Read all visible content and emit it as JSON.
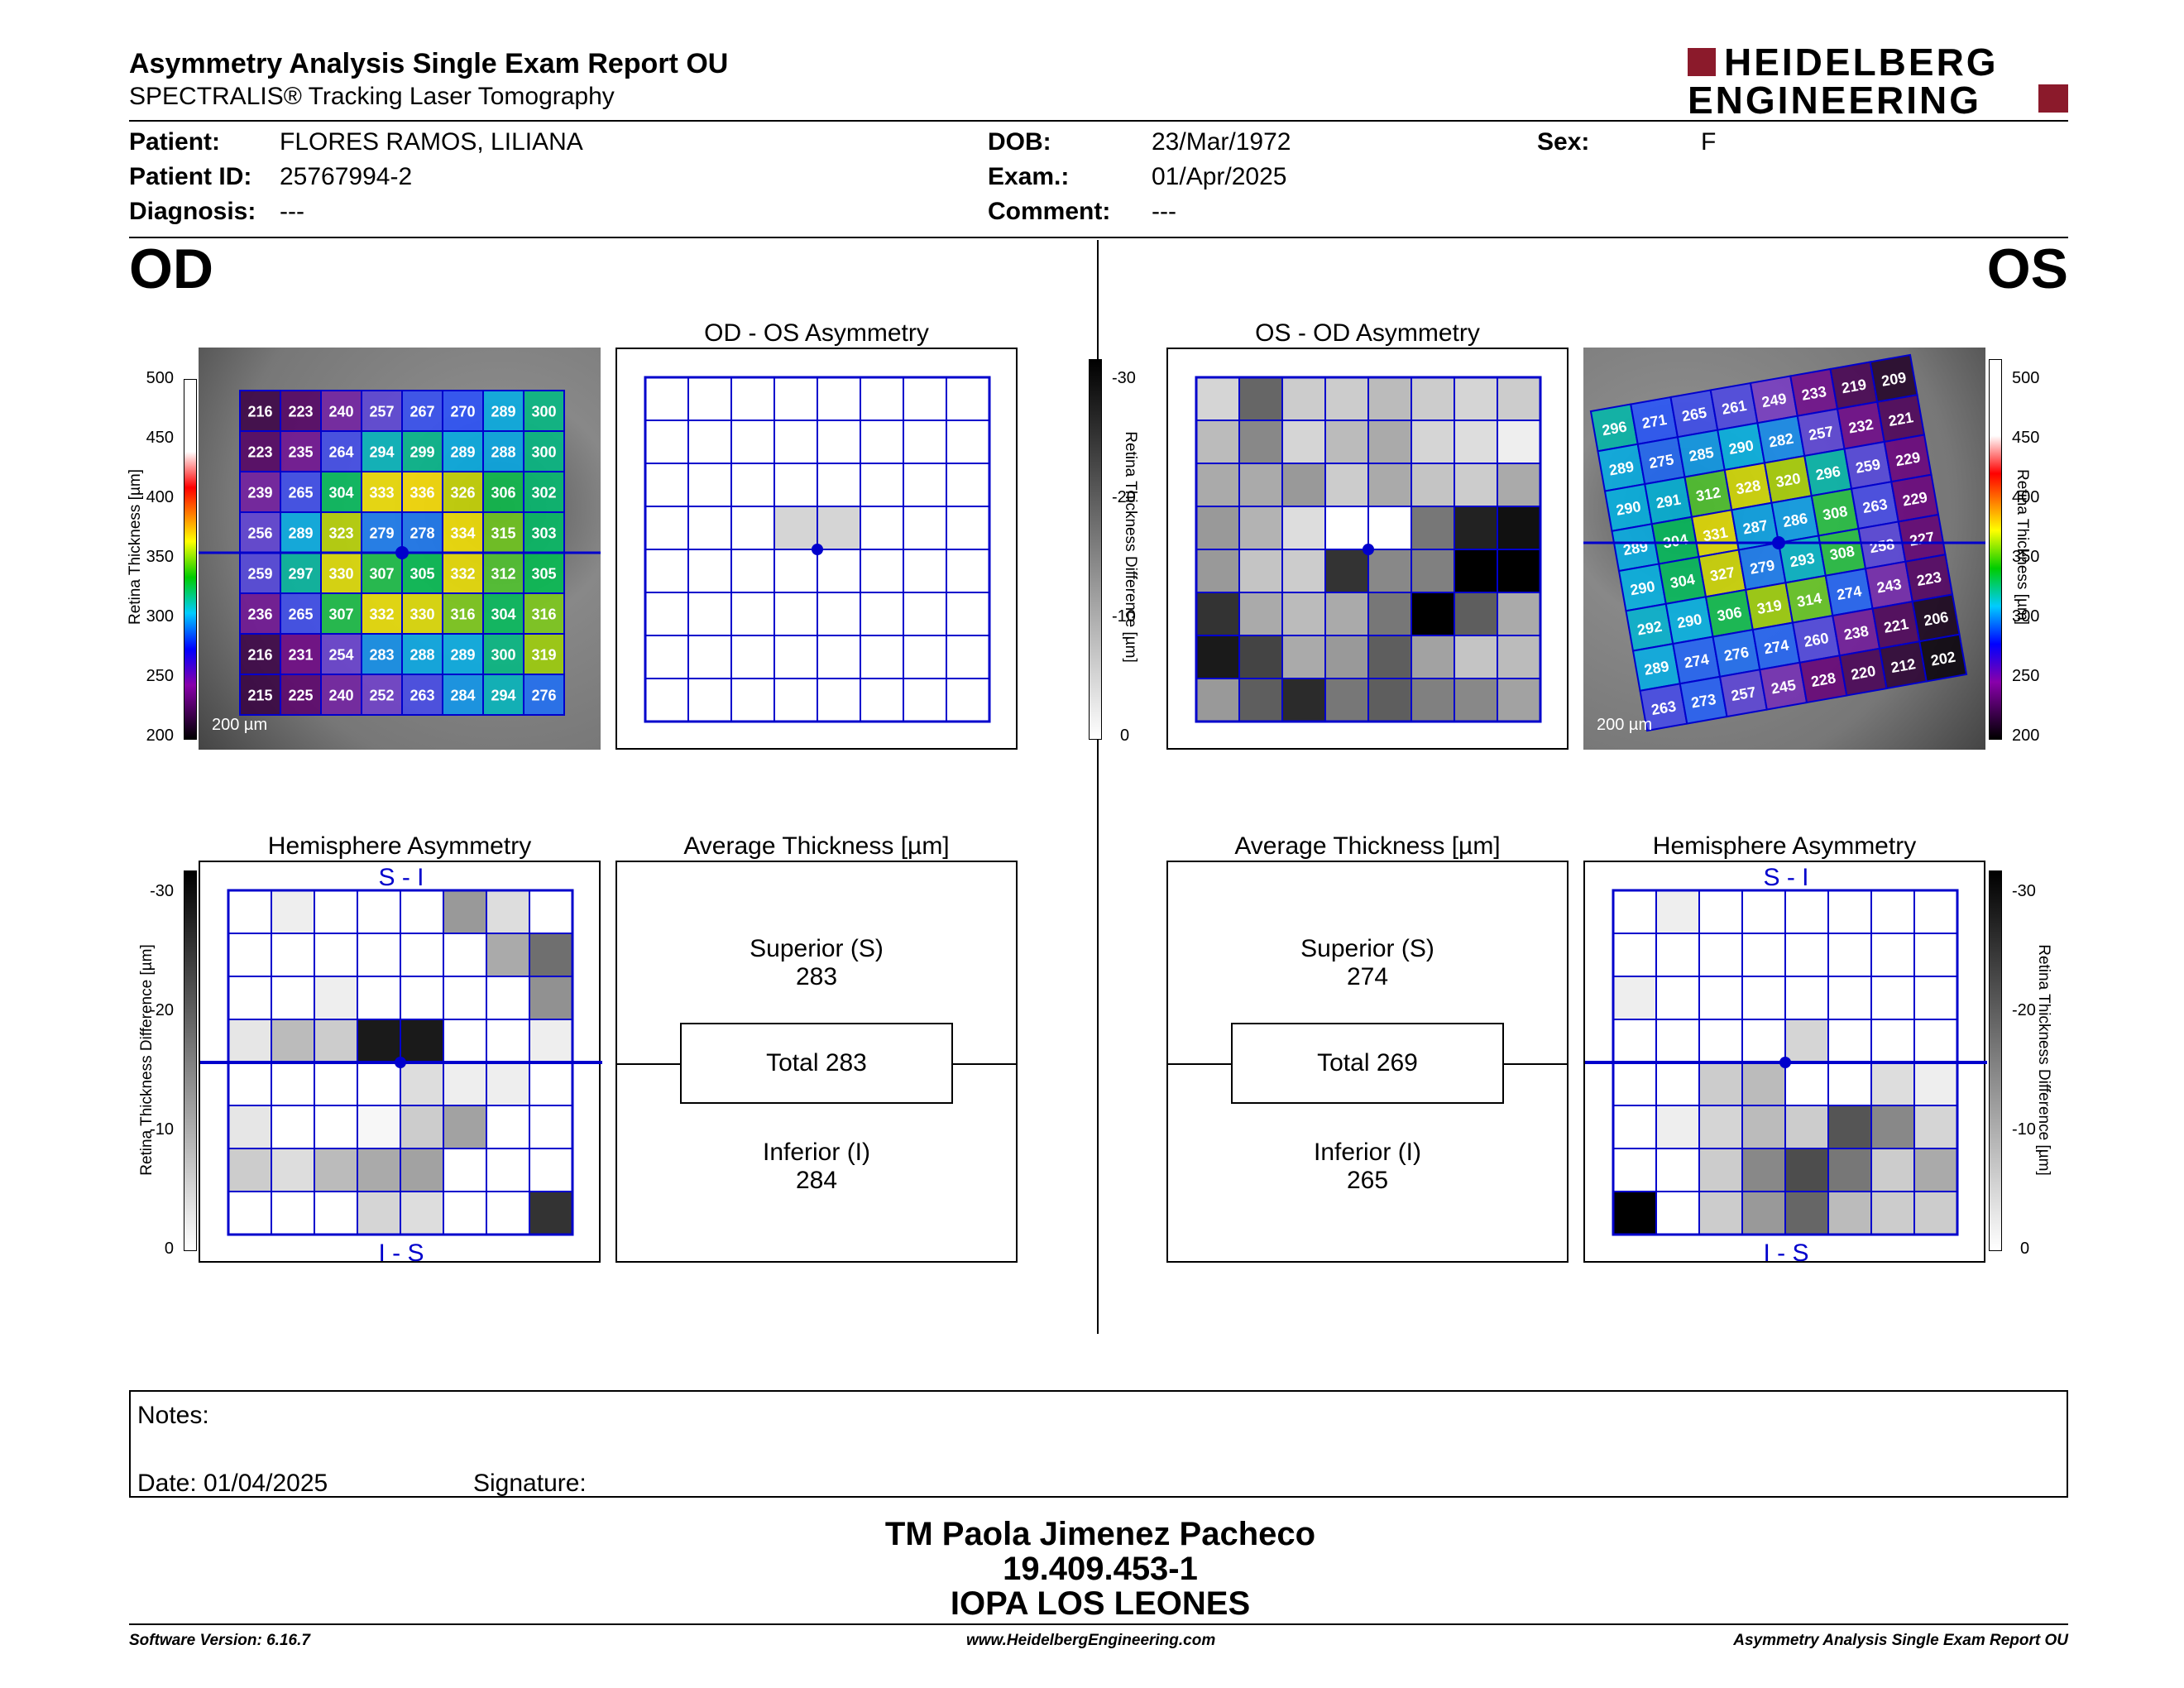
{
  "header": {
    "title": "Asymmetry Analysis Single Exam Report OU",
    "subtitle": "SPECTRALIS® Tracking Laser Tomography",
    "logo_line1": "HEIDELBERG",
    "logo_line2": "ENGINEERING",
    "logo_color": "#8b1a2b"
  },
  "patient": {
    "patient_label": "Patient:",
    "patient_value": "FLORES RAMOS, LILIANA",
    "id_label": "Patient ID:",
    "id_value": "25767994-2",
    "diag_label": "Diagnosis:",
    "diag_value": "---",
    "dob_label": "DOB:",
    "dob_value": "23/Mar/1972",
    "exam_label": "Exam.:",
    "exam_value": "01/Apr/2025",
    "comment_label": "Comment:",
    "comment_value": "---",
    "sex_label": "Sex:",
    "sex_value": "F"
  },
  "od": {
    "label": "OD",
    "asym_title": "OD - OS Asymmetry",
    "hemi_title": "Hemisphere Asymmetry",
    "avg_title": "Average Thickness [µm]",
    "superior_label": "Superior (S)",
    "superior_value": "283",
    "total_label": "Total 283",
    "inferior_label": "Inferior (I)",
    "inferior_value": "284",
    "scale_bar": "200 µm",
    "thickness_grid": [
      [
        216,
        223,
        240,
        257,
        267,
        270,
        289,
        300
      ],
      [
        223,
        235,
        264,
        294,
        299,
        289,
        288,
        300
      ],
      [
        239,
        265,
        304,
        333,
        336,
        326,
        306,
        302
      ],
      [
        256,
        289,
        323,
        279,
        278,
        334,
        315,
        303
      ],
      [
        259,
        297,
        330,
        307,
        305,
        332,
        312,
        305
      ],
      [
        236,
        265,
        307,
        332,
        330,
        316,
        304,
        316
      ],
      [
        216,
        231,
        254,
        283,
        288,
        289,
        300,
        319
      ],
      [
        215,
        225,
        240,
        252,
        263,
        284,
        294,
        276
      ]
    ],
    "asym_grid": [
      [
        0,
        0,
        0,
        0,
        0,
        0,
        0,
        0
      ],
      [
        0,
        0,
        0,
        0,
        0,
        0,
        0,
        0
      ],
      [
        0,
        0,
        0,
        0,
        0,
        0,
        0,
        0
      ],
      [
        0,
        0,
        0,
        5,
        5,
        0,
        0,
        0
      ],
      [
        0,
        0,
        0,
        0,
        0,
        0,
        0,
        0
      ],
      [
        0,
        0,
        0,
        0,
        0,
        0,
        0,
        0
      ],
      [
        0,
        0,
        0,
        0,
        0,
        0,
        0,
        0
      ],
      [
        0,
        0,
        0,
        0,
        0,
        0,
        0,
        0
      ]
    ],
    "hemi_grid": [
      [
        0,
        2,
        0,
        0,
        0,
        12,
        4,
        0
      ],
      [
        0,
        0,
        0,
        0,
        0,
        0,
        10,
        17
      ],
      [
        0,
        0,
        2,
        0,
        0,
        0,
        0,
        13
      ],
      [
        3,
        8,
        6,
        27,
        27,
        0,
        0,
        2
      ],
      [
        0,
        0,
        0,
        0,
        4,
        2,
        2,
        0
      ],
      [
        3,
        0,
        0,
        1,
        6,
        11,
        0,
        0
      ],
      [
        6,
        4,
        8,
        10,
        11,
        0,
        0,
        0
      ],
      [
        0,
        0,
        0,
        5,
        4,
        0,
        0,
        24
      ]
    ]
  },
  "os": {
    "label": "OS",
    "asym_title": "OS - OD Asymmetry",
    "hemi_title": "Hemisphere Asymmetry",
    "avg_title": "Average Thickness [µm]",
    "superior_label": "Superior (S)",
    "superior_value": "274",
    "total_label": "Total 269",
    "inferior_label": "Inferior (I)",
    "inferior_value": "265",
    "scale_bar": "200 µm",
    "thickness_grid": [
      [
        296,
        271,
        265,
        261,
        249,
        233,
        219,
        209
      ],
      [
        289,
        275,
        285,
        290,
        282,
        257,
        232,
        221
      ],
      [
        290,
        291,
        312,
        328,
        320,
        296,
        259,
        229
      ],
      [
        289,
        304,
        331,
        287,
        286,
        308,
        263,
        229
      ],
      [
        290,
        304,
        327,
        279,
        293,
        308,
        258,
        227
      ],
      [
        292,
        290,
        306,
        319,
        314,
        274,
        243,
        223
      ],
      [
        289,
        274,
        276,
        274,
        260,
        238,
        221,
        206
      ],
      [
        263,
        273,
        257,
        245,
        228,
        220,
        212,
        202
      ]
    ],
    "asym_grid": [
      [
        5,
        18,
        6,
        6,
        8,
        6,
        5,
        6
      ],
      [
        8,
        14,
        5,
        8,
        10,
        5,
        4,
        2
      ],
      [
        10,
        10,
        12,
        6,
        10,
        7,
        6,
        10
      ],
      [
        12,
        9,
        4,
        0,
        0,
        16,
        26,
        28
      ],
      [
        12,
        7,
        6,
        24,
        14,
        15,
        30,
        30
      ],
      [
        24,
        10,
        8,
        10,
        16,
        30,
        19,
        10
      ],
      [
        27,
        22,
        10,
        12,
        19,
        11,
        7,
        8
      ],
      [
        12,
        19,
        25,
        16,
        19,
        15,
        14,
        11
      ]
    ],
    "hemi_grid": [
      [
        0,
        2,
        0,
        0,
        0,
        0,
        0,
        0
      ],
      [
        0,
        0,
        0,
        0,
        0,
        0,
        0,
        0
      ],
      [
        2,
        0,
        0,
        0,
        0,
        0,
        0,
        0
      ],
      [
        0,
        0,
        0,
        0,
        5,
        0,
        0,
        0
      ],
      [
        0,
        0,
        6,
        8,
        0,
        0,
        4,
        2
      ],
      [
        0,
        2,
        5,
        8,
        6,
        20,
        14,
        5
      ],
      [
        0,
        0,
        6,
        14,
        21,
        16,
        6,
        10
      ],
      [
        30,
        0,
        6,
        12,
        18,
        8,
        6,
        6
      ]
    ]
  },
  "scales": {
    "thickness_ticks": [
      "500",
      "450",
      "400",
      "350",
      "300",
      "250",
      "200"
    ],
    "thickness_label": "Retina Thickness [µm]",
    "diff_ticks": [
      "-30",
      "-20",
      "-10",
      "0"
    ],
    "diff_label": "Retina Thickness Difference [µm]",
    "si_label": "S - I",
    "is_label": "I - S"
  },
  "notes": {
    "notes_label": "Notes:",
    "date_label": "Date: 01/04/2025",
    "signature_label": "Signature:"
  },
  "signature": {
    "name": "TM Paola Jimenez Pacheco",
    "id": "19.409.453-1",
    "institution": "IOPA LOS LEONES"
  },
  "footer": {
    "software": "Software Version: 6.16.7",
    "website": "www.HeidelbergEngineering.com",
    "report": "Asymmetry Analysis Single Exam Report OU"
  }
}
